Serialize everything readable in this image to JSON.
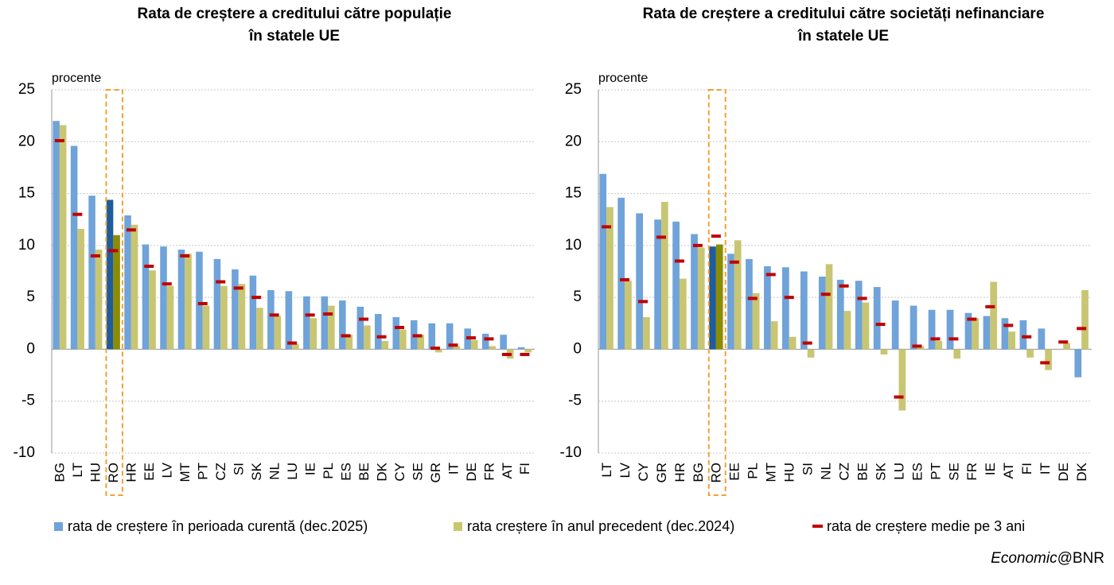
{
  "chart_data": [
    {
      "type": "bar",
      "title": [
        "Rata de creștere a creditului către populație",
        "în statele UE"
      ],
      "y_label": "procente",
      "categories": [
        "BG",
        "LT",
        "HU",
        "RO",
        "HR",
        "EE",
        "LV",
        "MT",
        "PT",
        "CZ",
        "SI",
        "SK",
        "NL",
        "LU",
        "IE",
        "PL",
        "ES",
        "BE",
        "DK",
        "CY",
        "SE",
        "GR",
        "IT",
        "DE",
        "FR",
        "AT",
        "FI"
      ],
      "highlight": 3,
      "series": [
        {
          "name": "rata de creștere în perioada curentă (dec.2025)",
          "color": "#6fa3d9",
          "highlight_color": "#1f5c9c",
          "mark": "bar",
          "values": [
            22,
            19.6,
            14.8,
            14.4,
            12.9,
            10.1,
            9.9,
            9.6,
            9.4,
            8.7,
            7.7,
            7.1,
            5.7,
            5.6,
            5.1,
            5.1,
            4.7,
            4.1,
            3.4,
            3.1,
            2.8,
            2.5,
            2.5,
            2.0,
            1.5,
            1.4,
            0.2
          ]
        },
        {
          "name": "rata creștere în anul precedent (dec.2024)",
          "color": "#c8c672",
          "highlight_color": "#8c8c00",
          "mark": "bar",
          "values": [
            21.6,
            11.6,
            9.6,
            11.0,
            12.0,
            7.6,
            6.1,
            9.2,
            4.2,
            6.1,
            6.3,
            4.0,
            3.2,
            0.5,
            3.0,
            4.2,
            1.4,
            2.3,
            0.8,
            1.9,
            1.4,
            -0.3,
            0.3,
            0.9,
            0.3,
            -0.9,
            -0.3
          ]
        },
        {
          "name": "rata de creștere medie pe 3 ani",
          "color": "#c00000",
          "mark": "dash",
          "values": [
            20.1,
            13.0,
            9.0,
            9.5,
            11.5,
            8.0,
            6.3,
            9.0,
            4.4,
            6.5,
            5.9,
            5.0,
            3.3,
            0.6,
            3.3,
            3.4,
            1.3,
            2.9,
            1.2,
            2.1,
            1.3,
            0.1,
            0.4,
            1.1,
            1.0,
            -0.5,
            -0.5
          ]
        }
      ],
      "ylim": [
        -10,
        25
      ],
      "yticks": [
        -10,
        -5,
        0,
        5,
        10,
        15,
        20,
        25
      ],
      "grid": true
    },
    {
      "type": "bar",
      "title": [
        "Rata de creștere a creditului către societăți nefinanciare",
        "în statele UE"
      ],
      "y_label": "procente",
      "categories": [
        "LT",
        "LV",
        "CY",
        "GR",
        "HR",
        "BG",
        "RO",
        "EE",
        "PL",
        "MT",
        "HU",
        "SI",
        "NL",
        "CZ",
        "BE",
        "SK",
        "LU",
        "ES",
        "PT",
        "SE",
        "FR",
        "IE",
        "AT",
        "FI",
        "IT",
        "DE",
        "DK"
      ],
      "highlight": 6,
      "series": [
        {
          "color": "#6fa3d9",
          "highlight_color": "#1f5c9c",
          "mark": "bar",
          "values": [
            16.9,
            14.6,
            13.1,
            12.5,
            12.3,
            11.1,
            9.9,
            9.2,
            8.7,
            8.0,
            7.9,
            7.5,
            7.0,
            6.7,
            6.6,
            6.0,
            4.7,
            4.2,
            3.8,
            3.8,
            3.5,
            3.2,
            3.0,
            2.8,
            2.0,
            0,
            -2.7
          ]
        },
        {
          "color": "#c8c672",
          "highlight_color": "#8c8c00",
          "mark": "bar",
          "values": [
            13.7,
            6.6,
            3.1,
            14.2,
            6.8,
            9.8,
            10.1,
            10.5,
            5.4,
            2.7,
            1.2,
            -0.8,
            8.2,
            3.7,
            4.5,
            -0.5,
            -5.9,
            0.3,
            0.8,
            -0.9,
            3.0,
            6.5,
            1.7,
            -0.8,
            -2.0,
            0.6,
            5.7
          ]
        },
        {
          "color": "#c00000",
          "mark": "dash",
          "values": [
            11.8,
            6.7,
            4.6,
            10.8,
            8.5,
            10.0,
            10.9,
            8.4,
            4.9,
            7.2,
            5.0,
            0.6,
            5.3,
            6.1,
            4.9,
            2.4,
            -4.6,
            0.3,
            1.0,
            1.0,
            2.9,
            4.1,
            2.3,
            1.2,
            -1.3,
            0.7,
            2.0
          ]
        }
      ],
      "ylim": [
        -10,
        25
      ],
      "yticks": [
        -10,
        -5,
        0,
        5,
        10,
        15,
        20,
        25
      ],
      "grid": true
    }
  ],
  "source": {
    "italic": "Economic",
    "text": "@BNR"
  }
}
